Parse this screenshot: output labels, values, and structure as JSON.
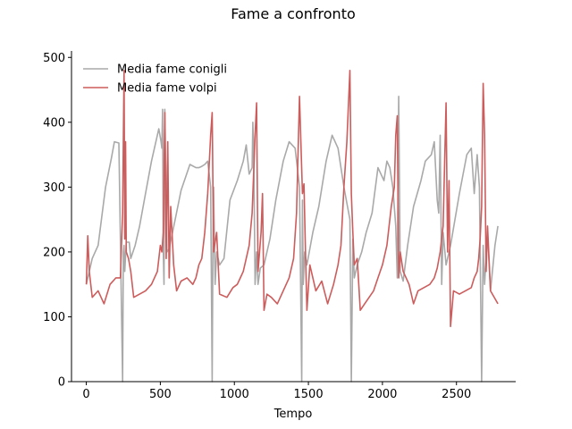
{
  "chart_data": {
    "type": "line",
    "title": "Fame a confronto",
    "xlabel": "Tempo",
    "ylabel": "",
    "xlim": [
      -100,
      2900
    ],
    "ylim": [
      0,
      510
    ],
    "xticks": [
      0,
      500,
      1000,
      1500,
      2000,
      2500
    ],
    "yticks": [
      0,
      100,
      200,
      300,
      400,
      500
    ],
    "legend": "upper-left",
    "grid": false,
    "series": [
      {
        "name": "Media fame conigli",
        "color": "#a9a9a9",
        "points": [
          [
            0,
            150
          ],
          [
            20,
            170
          ],
          [
            40,
            190
          ],
          [
            80,
            210
          ],
          [
            130,
            300
          ],
          [
            170,
            345
          ],
          [
            190,
            370
          ],
          [
            220,
            368
          ],
          [
            245,
            0
          ],
          [
            250,
            200
          ],
          [
            255,
            210
          ],
          [
            260,
            170
          ],
          [
            270,
            215
          ],
          [
            290,
            215
          ],
          [
            300,
            190
          ],
          [
            330,
            210
          ],
          [
            360,
            240
          ],
          [
            400,
            290
          ],
          [
            440,
            340
          ],
          [
            490,
            390
          ],
          [
            505,
            370
          ],
          [
            510,
            360
          ],
          [
            515,
            420
          ],
          [
            520,
            200
          ],
          [
            525,
            150
          ],
          [
            530,
            420
          ],
          [
            545,
            200
          ],
          [
            560,
            205
          ],
          [
            600,
            250
          ],
          [
            640,
            295
          ],
          [
            700,
            335
          ],
          [
            740,
            330
          ],
          [
            760,
            330
          ],
          [
            780,
            332
          ],
          [
            800,
            335
          ],
          [
            820,
            340
          ],
          [
            840,
            300
          ],
          [
            850,
            0
          ],
          [
            855,
            200
          ],
          [
            860,
            300
          ],
          [
            870,
            150
          ],
          [
            880,
            200
          ],
          [
            900,
            180
          ],
          [
            930,
            190
          ],
          [
            970,
            280
          ],
          [
            1020,
            310
          ],
          [
            1060,
            340
          ],
          [
            1080,
            365
          ],
          [
            1100,
            320
          ],
          [
            1120,
            330
          ],
          [
            1125,
            400
          ],
          [
            1130,
            360
          ],
          [
            1140,
            150
          ],
          [
            1150,
            200
          ],
          [
            1160,
            150
          ],
          [
            1175,
            175
          ],
          [
            1200,
            180
          ],
          [
            1240,
            220
          ],
          [
            1280,
            280
          ],
          [
            1330,
            340
          ],
          [
            1370,
            370
          ],
          [
            1410,
            360
          ],
          [
            1440,
            300
          ],
          [
            1455,
            0
          ],
          [
            1460,
            280
          ],
          [
            1465,
            150
          ],
          [
            1475,
            200
          ],
          [
            1490,
            180
          ],
          [
            1530,
            230
          ],
          [
            1570,
            270
          ],
          [
            1620,
            340
          ],
          [
            1660,
            380
          ],
          [
            1700,
            360
          ],
          [
            1740,
            300
          ],
          [
            1780,
            250
          ],
          [
            1790,
            0
          ],
          [
            1800,
            220
          ],
          [
            1810,
            160
          ],
          [
            1830,
            180
          ],
          [
            1860,
            200
          ],
          [
            1890,
            230
          ],
          [
            1930,
            260
          ],
          [
            1970,
            330
          ],
          [
            2010,
            310
          ],
          [
            2030,
            340
          ],
          [
            2050,
            330
          ],
          [
            2070,
            300
          ],
          [
            2090,
            240
          ],
          [
            2100,
            160
          ],
          [
            2110,
            440
          ],
          [
            2120,
            170
          ],
          [
            2140,
            155
          ],
          [
            2170,
            210
          ],
          [
            2210,
            270
          ],
          [
            2260,
            310
          ],
          [
            2290,
            340
          ],
          [
            2330,
            350
          ],
          [
            2350,
            370
          ],
          [
            2370,
            280
          ],
          [
            2380,
            260
          ],
          [
            2390,
            380
          ],
          [
            2400,
            150
          ],
          [
            2410,
            230
          ],
          [
            2430,
            180
          ],
          [
            2460,
            210
          ],
          [
            2520,
            290
          ],
          [
            2570,
            350
          ],
          [
            2600,
            360
          ],
          [
            2620,
            290
          ],
          [
            2640,
            350
          ],
          [
            2655,
            300
          ],
          [
            2670,
            0
          ],
          [
            2680,
            210
          ],
          [
            2690,
            150
          ],
          [
            2710,
            230
          ],
          [
            2730,
            140
          ],
          [
            2760,
            210
          ],
          [
            2780,
            240
          ]
        ]
      },
      {
        "name": "Media fame volpi",
        "color": "#cd5c5c",
        "points": [
          [
            0,
            150
          ],
          [
            10,
            225
          ],
          [
            20,
            170
          ],
          [
            40,
            130
          ],
          [
            80,
            140
          ],
          [
            120,
            120
          ],
          [
            160,
            150
          ],
          [
            200,
            160
          ],
          [
            230,
            160
          ],
          [
            245,
            260
          ],
          [
            255,
            480
          ],
          [
            260,
            220
          ],
          [
            265,
            370
          ],
          [
            270,
            200
          ],
          [
            285,
            190
          ],
          [
            300,
            170
          ],
          [
            320,
            130
          ],
          [
            360,
            135
          ],
          [
            400,
            140
          ],
          [
            440,
            150
          ],
          [
            480,
            170
          ],
          [
            500,
            210
          ],
          [
            510,
            200
          ],
          [
            520,
            230
          ],
          [
            530,
            415
          ],
          [
            540,
            190
          ],
          [
            550,
            370
          ],
          [
            560,
            160
          ],
          [
            570,
            270
          ],
          [
            590,
            180
          ],
          [
            610,
            140
          ],
          [
            640,
            155
          ],
          [
            680,
            160
          ],
          [
            720,
            150
          ],
          [
            740,
            160
          ],
          [
            760,
            180
          ],
          [
            780,
            190
          ],
          [
            800,
            230
          ],
          [
            820,
            290
          ],
          [
            840,
            380
          ],
          [
            850,
            415
          ],
          [
            860,
            200
          ],
          [
            880,
            230
          ],
          [
            900,
            135
          ],
          [
            950,
            130
          ],
          [
            990,
            145
          ],
          [
            1020,
            150
          ],
          [
            1040,
            160
          ],
          [
            1060,
            170
          ],
          [
            1080,
            190
          ],
          [
            1100,
            210
          ],
          [
            1120,
            260
          ],
          [
            1140,
            380
          ],
          [
            1150,
            430
          ],
          [
            1160,
            170
          ],
          [
            1170,
            200
          ],
          [
            1180,
            230
          ],
          [
            1190,
            290
          ],
          [
            1200,
            110
          ],
          [
            1220,
            135
          ],
          [
            1250,
            130
          ],
          [
            1290,
            120
          ],
          [
            1330,
            140
          ],
          [
            1370,
            160
          ],
          [
            1400,
            190
          ],
          [
            1420,
            260
          ],
          [
            1440,
            440
          ],
          [
            1460,
            290
          ],
          [
            1470,
            305
          ],
          [
            1480,
            200
          ],
          [
            1490,
            110
          ],
          [
            1510,
            180
          ],
          [
            1550,
            140
          ],
          [
            1590,
            155
          ],
          [
            1630,
            120
          ],
          [
            1670,
            150
          ],
          [
            1700,
            180
          ],
          [
            1720,
            210
          ],
          [
            1740,
            300
          ],
          [
            1760,
            370
          ],
          [
            1780,
            480
          ],
          [
            1790,
            290
          ],
          [
            1800,
            230
          ],
          [
            1810,
            180
          ],
          [
            1830,
            190
          ],
          [
            1850,
            110
          ],
          [
            1880,
            120
          ],
          [
            1910,
            130
          ],
          [
            1940,
            140
          ],
          [
            1970,
            160
          ],
          [
            2000,
            180
          ],
          [
            2030,
            210
          ],
          [
            2060,
            270
          ],
          [
            2080,
            300
          ],
          [
            2090,
            380
          ],
          [
            2100,
            410
          ],
          [
            2110,
            160
          ],
          [
            2120,
            200
          ],
          [
            2140,
            170
          ],
          [
            2180,
            150
          ],
          [
            2210,
            120
          ],
          [
            2240,
            140
          ],
          [
            2280,
            145
          ],
          [
            2320,
            150
          ],
          [
            2350,
            160
          ],
          [
            2370,
            175
          ],
          [
            2390,
            200
          ],
          [
            2410,
            240
          ],
          [
            2430,
            430
          ],
          [
            2440,
            200
          ],
          [
            2450,
            310
          ],
          [
            2460,
            85
          ],
          [
            2480,
            140
          ],
          [
            2520,
            135
          ],
          [
            2560,
            140
          ],
          [
            2600,
            145
          ],
          [
            2620,
            160
          ],
          [
            2640,
            170
          ],
          [
            2650,
            190
          ],
          [
            2660,
            220
          ],
          [
            2670,
            270
          ],
          [
            2680,
            460
          ],
          [
            2690,
            380
          ],
          [
            2700,
            170
          ],
          [
            2710,
            240
          ],
          [
            2730,
            140
          ],
          [
            2780,
            120
          ]
        ]
      }
    ]
  }
}
